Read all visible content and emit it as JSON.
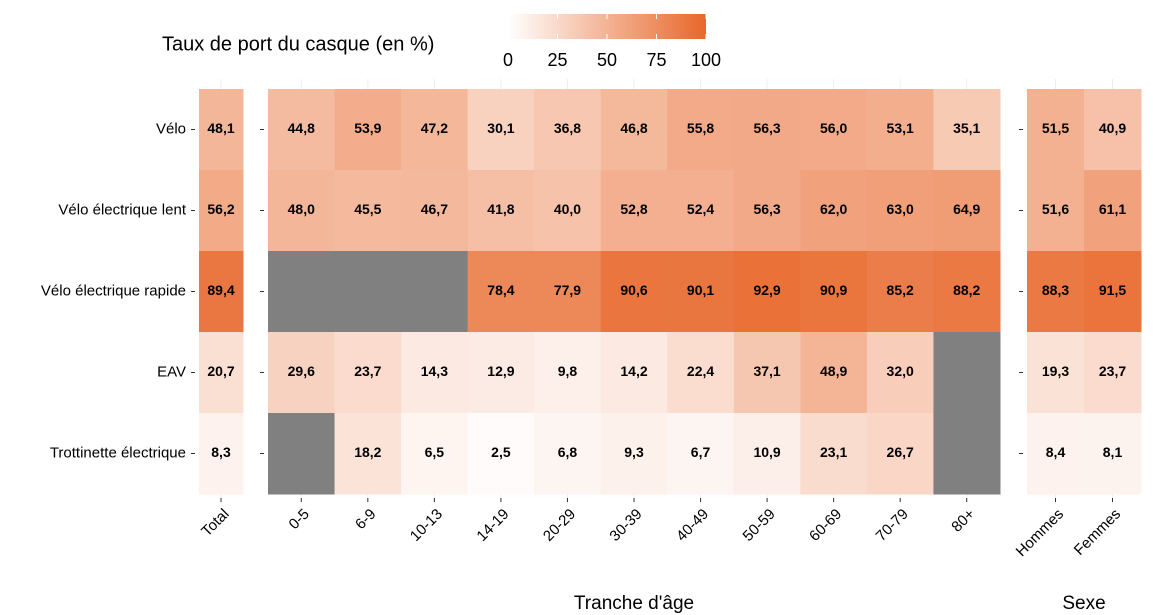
{
  "chart_data": {
    "type": "heatmap",
    "legend_title": "Taux de port du casque (en %)",
    "zlim": [
      0,
      100
    ],
    "zticks": [
      0,
      25,
      50,
      75,
      100
    ],
    "low_color": "#ffffff",
    "high_color": "#e8672a",
    "na_color": "#808080",
    "rows": [
      "Vélo",
      "Vélo électrique lent",
      "Vélo électrique rapide",
      "EAV",
      "Trottinette électrique"
    ],
    "panels": [
      {
        "categories": [
          "Total"
        ],
        "values": [
          [
            48.1
          ],
          [
            56.2
          ],
          [
            89.4
          ],
          [
            20.7
          ],
          [
            8.3
          ]
        ],
        "value_labels": [
          [
            "48,1"
          ],
          [
            "56,2"
          ],
          [
            "89,4"
          ],
          [
            "20,7"
          ],
          [
            "8,3"
          ]
        ]
      },
      {
        "xlabel": "Tranche d'âge",
        "categories": [
          "0-5",
          "6-9",
          "10-13",
          "14-19",
          "20-29",
          "30-39",
          "40-49",
          "50-59",
          "60-69",
          "70-79",
          "80+"
        ],
        "values": [
          [
            44.8,
            53.9,
            47.2,
            30.1,
            36.8,
            46.8,
            55.8,
            56.3,
            56.0,
            53.1,
            35.1
          ],
          [
            48.0,
            45.5,
            46.7,
            41.8,
            40.0,
            52.8,
            52.4,
            56.3,
            62.0,
            63.0,
            64.9
          ],
          [
            null,
            null,
            null,
            78.4,
            77.9,
            90.6,
            90.1,
            92.9,
            90.9,
            85.2,
            88.2
          ],
          [
            29.6,
            23.7,
            14.3,
            12.9,
            9.8,
            14.2,
            22.4,
            37.1,
            48.9,
            32.0,
            null
          ],
          [
            null,
            18.2,
            6.5,
            2.5,
            6.8,
            9.3,
            6.7,
            10.9,
            23.1,
            26.7,
            null
          ]
        ],
        "value_labels": [
          [
            "44,8",
            "53,9",
            "47,2",
            "30,1",
            "36,8",
            "46,8",
            "55,8",
            "56,3",
            "56,0",
            "53,1",
            "35,1"
          ],
          [
            "48,0",
            "45,5",
            "46,7",
            "41,8",
            "40,0",
            "52,8",
            "52,4",
            "56,3",
            "62,0",
            "63,0",
            "64,9"
          ],
          [
            null,
            null,
            null,
            "78,4",
            "77,9",
            "90,6",
            "90,1",
            "92,9",
            "90,9",
            "85,2",
            "88,2"
          ],
          [
            "29,6",
            "23,7",
            "14,3",
            "12,9",
            "9,8",
            "14,2",
            "22,4",
            "37,1",
            "48,9",
            "32,0",
            null
          ],
          [
            null,
            "18,2",
            "6,5",
            "2,5",
            "6,8",
            "9,3",
            "6,7",
            "10,9",
            "23,1",
            "26,7",
            null
          ]
        ]
      },
      {
        "xlabel": "Sexe",
        "categories": [
          "Hommes",
          "Femmes"
        ],
        "values": [
          [
            51.5,
            40.9
          ],
          [
            51.6,
            61.1
          ],
          [
            88.3,
            91.5
          ],
          [
            19.3,
            23.7
          ],
          [
            8.4,
            8.1
          ]
        ],
        "value_labels": [
          [
            "51,5",
            "40,9"
          ],
          [
            "51,6",
            "61,1"
          ],
          [
            "88,3",
            "91,5"
          ],
          [
            "19,3",
            "23,7"
          ],
          [
            "8,4",
            "8,1"
          ]
        ]
      }
    ]
  }
}
